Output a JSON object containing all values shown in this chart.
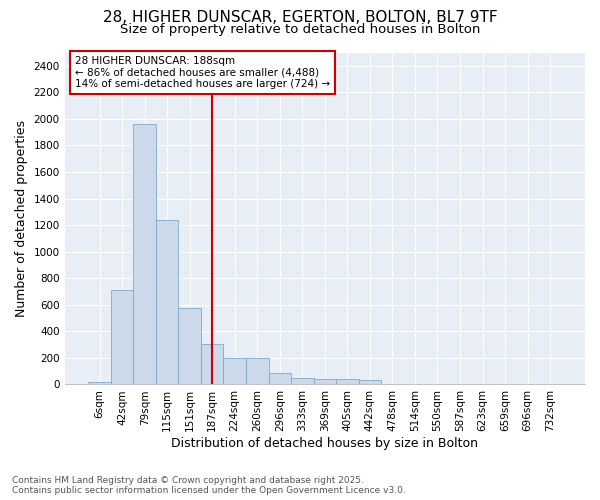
{
  "title": "28, HIGHER DUNSCAR, EGERTON, BOLTON, BL7 9TF",
  "subtitle": "Size of property relative to detached houses in Bolton",
  "xlabel": "Distribution of detached houses by size in Bolton",
  "ylabel": "Number of detached properties",
  "bar_color": "#ccd9ea",
  "bar_edge_color": "#7faac8",
  "background_color": "#ffffff",
  "plot_bg_color": "#e8eef5",
  "grid_color": "#ffffff",
  "annotation_box_color": "#cc0000",
  "vline_color": "#cc0000",
  "vline_x_index": 5,
  "annotation_text": "28 HIGHER DUNSCAR: 188sqm\n← 86% of detached houses are smaller (4,488)\n14% of semi-detached houses are larger (724) →",
  "footer": "Contains HM Land Registry data © Crown copyright and database right 2025.\nContains public sector information licensed under the Open Government Licence v3.0.",
  "bins": [
    "6sqm",
    "42sqm",
    "79sqm",
    "115sqm",
    "151sqm",
    "187sqm",
    "224sqm",
    "260sqm",
    "296sqm",
    "333sqm",
    "369sqm",
    "405sqm",
    "442sqm",
    "478sqm",
    "514sqm",
    "550sqm",
    "587sqm",
    "623sqm",
    "659sqm",
    "696sqm",
    "732sqm"
  ],
  "values": [
    15,
    710,
    1960,
    1235,
    575,
    305,
    200,
    200,
    85,
    50,
    38,
    38,
    30,
    0,
    0,
    0,
    0,
    0,
    0,
    0,
    0
  ],
  "ylim": [
    0,
    2500
  ],
  "yticks": [
    0,
    200,
    400,
    600,
    800,
    1000,
    1200,
    1400,
    1600,
    1800,
    2000,
    2200,
    2400
  ],
  "title_fontsize": 11,
  "subtitle_fontsize": 9.5,
  "label_fontsize": 9,
  "tick_fontsize": 7.5,
  "footer_fontsize": 6.5,
  "annotation_fontsize": 7.5
}
